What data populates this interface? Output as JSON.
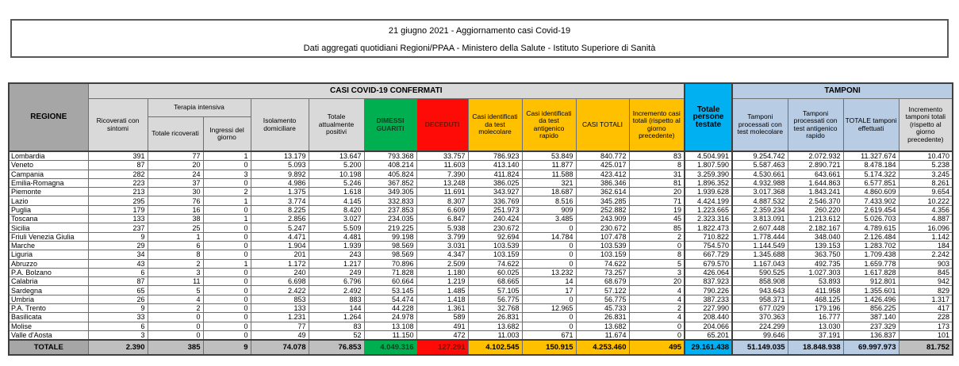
{
  "title": {
    "line1": "21 giugno 2021 - Aggiornamento casi Covid-19",
    "line2": "Dati aggregati quotidiani Regioni/PPAA - Ministero della Salute - Istituto Superiore di Sanità"
  },
  "colors": {
    "header_gray": "#A6A6A6",
    "band_gray": "#D9D9D9",
    "totale_gray": "#BFBFBF",
    "green": "#00B050",
    "green_text": "#0D3D20",
    "red": "#FF0B07",
    "red_text": "#7A1200",
    "yellow": "#FFC000",
    "cyan": "#00B0F0",
    "light_blue": "#B8CCE4"
  },
  "table": {
    "header": {
      "regione": "REGIONE",
      "casi_confermati_group": "CASI COVID-19 CONFERMATI",
      "tamponi_group": "TAMPONI",
      "terapia_intensiva_group": "Terapia intensiva",
      "ricoverati_sintomi": "Ricoverati con sintomi",
      "terapia_totale": "Totale ricoverati",
      "terapia_ingressi": "Ingressi del giorno",
      "isolamento": "Isolamento domiciliare",
      "attualmente_positivi": "Totale attualmente positivi",
      "dimessi": "DIMESSI GUARITI",
      "deceduti": "DECEDUTI",
      "casi_molecolare": "Casi identificati da test molecolare",
      "casi_antigenico": "Casi identificati da test antigenico rapido",
      "casi_totali": "CASI TOTALI",
      "incremento_casi": "Incremento casi totali (rispetto al giorno precedente)",
      "persone_testate": "Totale persone testate",
      "tamponi_molecolare": "Tamponi processati con test molecolare",
      "tamponi_antigenico": "Tamponi processati con test antigenico rapido",
      "tamponi_totale": "TOTALE tamponi effettuati",
      "incremento_tamponi": "Incremento tamponi totali (rispetto al giorno precedente)"
    },
    "column_keys": [
      "ricoverati_sintomi",
      "terapia_totale",
      "terapia_ingressi",
      "isolamento",
      "attualmente_positivi",
      "dimessi",
      "deceduti",
      "casi_molecolare",
      "casi_antigenico",
      "casi_totali",
      "incremento_casi",
      "persone_testate",
      "tamponi_molecolare",
      "tamponi_antigenico",
      "tamponi_totale",
      "incremento_tamponi"
    ],
    "rows": [
      {
        "name": "Lombardia",
        "values": [
          "391",
          "77",
          "1",
          "13.179",
          "13.647",
          "793.368",
          "33.757",
          "786.923",
          "53.849",
          "840.772",
          "83",
          "4.504.991",
          "9.254.742",
          "2.072.932",
          "11.327.674",
          "10.470"
        ]
      },
      {
        "name": "Veneto",
        "values": [
          "87",
          "20",
          "0",
          "5.093",
          "5.200",
          "408.214",
          "11.603",
          "413.140",
          "11.877",
          "425.017",
          "8",
          "1.807.590",
          "5.587.463",
          "2.890.721",
          "8.478.184",
          "5.238"
        ]
      },
      {
        "name": "Campania",
        "values": [
          "282",
          "24",
          "3",
          "9.892",
          "10.198",
          "405.824",
          "7.390",
          "411.824",
          "11.588",
          "423.412",
          "31",
          "3.259.390",
          "4.530.661",
          "643.661",
          "5.174.322",
          "3.245"
        ]
      },
      {
        "name": "Emilia-Romagna",
        "values": [
          "223",
          "37",
          "0",
          "4.986",
          "5.246",
          "367.852",
          "13.248",
          "386.025",
          "321",
          "386.346",
          "81",
          "1.896.352",
          "4.932.988",
          "1.644.863",
          "6.577.851",
          "8.261"
        ]
      },
      {
        "name": "Piemonte",
        "values": [
          "213",
          "30",
          "2",
          "1.375",
          "1.618",
          "349.305",
          "11.691",
          "343.927",
          "18.687",
          "362.614",
          "20",
          "1.939.628",
          "3.017.368",
          "1.843.241",
          "4.860.609",
          "9.654"
        ]
      },
      {
        "name": "Lazio",
        "values": [
          "295",
          "76",
          "1",
          "3.774",
          "4.145",
          "332.833",
          "8.307",
          "336.769",
          "8.516",
          "345.285",
          "71",
          "4.424.199",
          "4.887.532",
          "2.546.370",
          "7.433.902",
          "10.222"
        ]
      },
      {
        "name": "Puglia",
        "values": [
          "179",
          "16",
          "0",
          "8.225",
          "8.420",
          "237.853",
          "6.609",
          "251.973",
          "909",
          "252.882",
          "19",
          "1.223.665",
          "2.359.234",
          "260.220",
          "2.619.454",
          "4.356"
        ]
      },
      {
        "name": "Toscana",
        "values": [
          "133",
          "38",
          "1",
          "2.856",
          "3.027",
          "234.035",
          "6.847",
          "240.424",
          "3.485",
          "243.909",
          "45",
          "2.323.316",
          "3.813.091",
          "1.213.612",
          "5.026.703",
          "4.887"
        ]
      },
      {
        "name": "Sicilia",
        "values": [
          "237",
          "25",
          "0",
          "5.247",
          "5.509",
          "219.225",
          "5.938",
          "230.672",
          "0",
          "230.672",
          "85",
          "1.822.473",
          "2.607.448",
          "2.182.167",
          "4.789.615",
          "16.096"
        ]
      },
      {
        "name": "Friuli Venezia Giulia",
        "values": [
          "9",
          "1",
          "0",
          "4.471",
          "4.481",
          "99.198",
          "3.799",
          "92.694",
          "14.784",
          "107.478",
          "2",
          "710.822",
          "1.778.444",
          "348.040",
          "2.126.484",
          "1.142"
        ]
      },
      {
        "name": "Marche",
        "values": [
          "29",
          "6",
          "0",
          "1.904",
          "1.939",
          "98.569",
          "3.031",
          "103.539",
          "0",
          "103.539",
          "0",
          "754.570",
          "1.144.549",
          "139.153",
          "1.283.702",
          "184"
        ]
      },
      {
        "name": "Liguria",
        "values": [
          "34",
          "8",
          "0",
          "201",
          "243",
          "98.569",
          "4.347",
          "103.159",
          "0",
          "103.159",
          "8",
          "667.729",
          "1.345.688",
          "363.750",
          "1.709.438",
          "2.242"
        ]
      },
      {
        "name": "Abruzzo",
        "values": [
          "43",
          "2",
          "1",
          "1.172",
          "1.217",
          "70.896",
          "2.509",
          "74.622",
          "0",
          "74.622",
          "5",
          "679.570",
          "1.167.043",
          "492.735",
          "1.659.778",
          "903"
        ]
      },
      {
        "name": "P.A. Bolzano",
        "values": [
          "6",
          "3",
          "0",
          "240",
          "249",
          "71.828",
          "1.180",
          "60.025",
          "13.232",
          "73.257",
          "3",
          "426.064",
          "590.525",
          "1.027.303",
          "1.617.828",
          "845"
        ]
      },
      {
        "name": "Calabria",
        "values": [
          "87",
          "11",
          "0",
          "6.698",
          "6.796",
          "60.664",
          "1.219",
          "68.665",
          "14",
          "68.679",
          "20",
          "837.923",
          "858.908",
          "53.893",
          "912.801",
          "942"
        ]
      },
      {
        "name": "Sardegna",
        "values": [
          "65",
          "5",
          "0",
          "2.422",
          "2.492",
          "53.145",
          "1.485",
          "57.105",
          "17",
          "57.122",
          "4",
          "790.226",
          "943.643",
          "411.958",
          "1.355.601",
          "829"
        ]
      },
      {
        "name": "Umbria",
        "values": [
          "26",
          "4",
          "0",
          "853",
          "883",
          "54.474",
          "1.418",
          "56.775",
          "0",
          "56.775",
          "4",
          "387.233",
          "958.371",
          "468.125",
          "1.426.496",
          "1.317"
        ]
      },
      {
        "name": "P.A. Trento",
        "values": [
          "9",
          "2",
          "0",
          "133",
          "144",
          "44.228",
          "1.361",
          "32.768",
          "12.965",
          "45.733",
          "2",
          "227.990",
          "677.029",
          "179.196",
          "856.225",
          "417"
        ]
      },
      {
        "name": "Basilicata",
        "values": [
          "33",
          "0",
          "0",
          "1.231",
          "1.264",
          "24.978",
          "589",
          "26.831",
          "0",
          "26.831",
          "4",
          "208.440",
          "370.363",
          "16.777",
          "387.140",
          "228"
        ]
      },
      {
        "name": "Molise",
        "values": [
          "6",
          "0",
          "0",
          "77",
          "83",
          "13.108",
          "491",
          "13.682",
          "0",
          "13.682",
          "0",
          "204.066",
          "224.299",
          "13.030",
          "237.329",
          "173"
        ]
      },
      {
        "name": "Valle d'Aosta",
        "values": [
          "3",
          "0",
          "0",
          "49",
          "52",
          "11.150",
          "472",
          "11.003",
          "671",
          "11.674",
          "0",
          "65.201",
          "99.646",
          "37.191",
          "136.837",
          "101"
        ]
      }
    ],
    "totale": {
      "label": "TOTALE",
      "values": [
        "2.390",
        "385",
        "9",
        "74.078",
        "76.853",
        "4.049.316",
        "127.291",
        "4.102.545",
        "150.915",
        "4.253.460",
        "495",
        "29.161.438",
        "51.149.035",
        "18.848.938",
        "69.997.973",
        "81.752"
      ]
    }
  }
}
